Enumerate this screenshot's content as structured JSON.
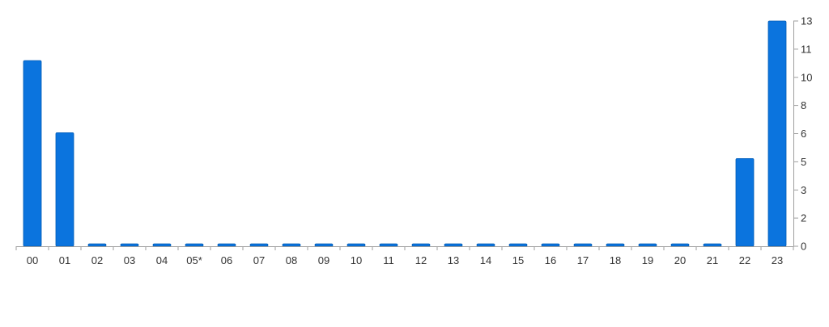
{
  "chart_data": {
    "type": "bar",
    "categories": [
      "00",
      "01",
      "02",
      "03",
      "04",
      "05*",
      "06",
      "07",
      "08",
      "09",
      "10",
      "11",
      "12",
      "13",
      "14",
      "15",
      "16",
      "17",
      "18",
      "19",
      "20",
      "21",
      "22",
      "23"
    ],
    "values": [
      10.8,
      6.6,
      0.1,
      0.1,
      0.1,
      0.1,
      0.1,
      0.1,
      0.1,
      0.1,
      0.1,
      0.1,
      0.1,
      0.1,
      0.1,
      0.1,
      0.1,
      0.1,
      0.1,
      0.1,
      0.1,
      0.1,
      5.1,
      13.1
    ],
    "y_tick_labels": [
      "0",
      "2",
      "3",
      "5",
      "6",
      "8",
      "10",
      "11",
      "13"
    ],
    "ylim": [
      0,
      13.1
    ],
    "y_axis_side": "right",
    "grid": false,
    "legend": "none",
    "colors": {
      "bar": "#0b74de",
      "bar_edge": "#005bb5",
      "axis": "#9e9e9e",
      "text": "#333333"
    }
  }
}
